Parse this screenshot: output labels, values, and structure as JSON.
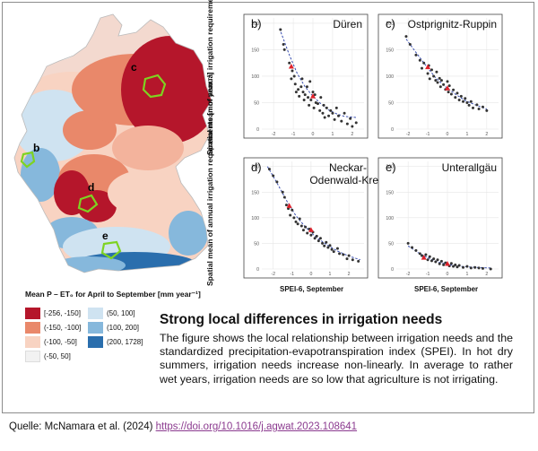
{
  "map": {
    "region_labels": [
      "b",
      "c",
      "d",
      "e"
    ]
  },
  "legend": {
    "title": "Mean P – ET₀ for April to September [mm year⁻¹]",
    "items": [
      {
        "label": "[-256, -150]",
        "color": "#b5162b"
      },
      {
        "label": "(-150, -100]",
        "color": "#e9886a"
      },
      {
        "label": "(-100, -50]",
        "color": "#f8d3c2"
      },
      {
        "label": "(-50, 50]",
        "color": "#f2f2f2"
      },
      {
        "label": "(50, 100]",
        "color": "#cfe3f1"
      },
      {
        "label": "(100, 200]",
        "color": "#86b8dc"
      },
      {
        "label": "(200, 1728]",
        "color": "#2a6ead"
      }
    ]
  },
  "shared_axis": {
    "ylabel": "Spatial mean of annual irrigation requirements [mm year⁻¹]",
    "xlabel": "SPEI-6, September"
  },
  "chart_data": [
    {
      "type": "scatter",
      "panel_letter": "b)",
      "title": "Düren",
      "xlabel": "",
      "ylabel": "",
      "xlim": [
        -2.6,
        2.6
      ],
      "ylim": [
        0,
        210
      ],
      "xticks": [
        -2,
        -1,
        0,
        1,
        2
      ],
      "yticks": [
        0,
        50,
        100,
        150,
        200
      ],
      "grid": true,
      "points": [
        [
          -1.65,
          188
        ],
        [
          -1.5,
          160
        ],
        [
          -1.45,
          150
        ],
        [
          -1.2,
          125
        ],
        [
          -1.1,
          95
        ],
        [
          -1.05,
          110
        ],
        [
          -0.95,
          100
        ],
        [
          -0.9,
          85
        ],
        [
          -0.85,
          70
        ],
        [
          -0.75,
          75
        ],
        [
          -0.7,
          62
        ],
        [
          -0.6,
          80
        ],
        [
          -0.55,
          95
        ],
        [
          -0.5,
          70
        ],
        [
          -0.45,
          55
        ],
        [
          -0.4,
          65
        ],
        [
          -0.3,
          80
        ],
        [
          -0.25,
          60
        ],
        [
          -0.2,
          45
        ],
        [
          -0.15,
          90
        ],
        [
          -0.1,
          55
        ],
        [
          0.0,
          70
        ],
        [
          0.05,
          40
        ],
        [
          0.1,
          65
        ],
        [
          0.15,
          50
        ],
        [
          0.25,
          48
        ],
        [
          0.35,
          35
        ],
        [
          0.4,
          60
        ],
        [
          0.5,
          30
        ],
        [
          0.55,
          45
        ],
        [
          0.6,
          22
        ],
        [
          0.7,
          40
        ],
        [
          0.8,
          25
        ],
        [
          0.9,
          35
        ],
        [
          1.0,
          30
        ],
        [
          1.1,
          18
        ],
        [
          1.2,
          40
        ],
        [
          1.3,
          25
        ],
        [
          1.45,
          15
        ],
        [
          1.6,
          30
        ],
        [
          1.75,
          10
        ],
        [
          1.9,
          20
        ],
        [
          2.0,
          5
        ],
        [
          2.2,
          12
        ]
      ],
      "means": [
        [
          -1.1,
          118
        ],
        [
          0.0,
          62
        ]
      ],
      "fit": [
        [
          -1.7,
          190
        ],
        [
          -1.2,
          140
        ],
        [
          -0.8,
          105
        ],
        [
          -0.4,
          80
        ],
        [
          0.0,
          62
        ],
        [
          0.4,
          48
        ],
        [
          0.8,
          36
        ],
        [
          1.2,
          29
        ],
        [
          1.6,
          24
        ],
        [
          2.2,
          22
        ]
      ]
    },
    {
      "type": "scatter",
      "panel_letter": "c)",
      "title": "Ostprignitz-Ruppin",
      "xlabel": "",
      "ylabel": "",
      "xlim": [
        -2.6,
        2.6
      ],
      "ylim": [
        0,
        210
      ],
      "xticks": [
        -2,
        -1,
        0,
        1,
        2
      ],
      "yticks": [
        0,
        50,
        100,
        150,
        200
      ],
      "grid": true,
      "points": [
        [
          -2.1,
          175
        ],
        [
          -1.9,
          160
        ],
        [
          -1.6,
          140
        ],
        [
          -1.4,
          130
        ],
        [
          -1.3,
          115
        ],
        [
          -1.2,
          125
        ],
        [
          -1.0,
          105
        ],
        [
          -0.95,
          120
        ],
        [
          -0.9,
          95
        ],
        [
          -0.8,
          112
        ],
        [
          -0.7,
          100
        ],
        [
          -0.6,
          92
        ],
        [
          -0.55,
          108
        ],
        [
          -0.5,
          88
        ],
        [
          -0.4,
          96
        ],
        [
          -0.35,
          80
        ],
        [
          -0.3,
          92
        ],
        [
          -0.2,
          84
        ],
        [
          -0.1,
          75
        ],
        [
          0.0,
          90
        ],
        [
          0.05,
          70
        ],
        [
          0.1,
          82
        ],
        [
          0.2,
          66
        ],
        [
          0.3,
          74
        ],
        [
          0.4,
          60
        ],
        [
          0.5,
          68
        ],
        [
          0.6,
          55
        ],
        [
          0.7,
          62
        ],
        [
          0.8,
          52
        ],
        [
          0.9,
          58
        ],
        [
          1.0,
          50
        ],
        [
          1.1,
          45
        ],
        [
          1.2,
          52
        ],
        [
          1.3,
          40
        ],
        [
          1.5,
          46
        ],
        [
          1.6,
          38
        ],
        [
          1.8,
          42
        ],
        [
          2.0,
          35
        ]
      ],
      "means": [
        [
          -1.0,
          117
        ],
        [
          0.0,
          77
        ]
      ],
      "fit": [
        [
          -2.1,
          170
        ],
        [
          -1.6,
          145
        ],
        [
          -1.1,
          120
        ],
        [
          -0.6,
          97
        ],
        [
          -0.1,
          80
        ],
        [
          0.4,
          66
        ],
        [
          0.9,
          54
        ],
        [
          1.4,
          46
        ],
        [
          2.0,
          38
        ]
      ]
    },
    {
      "type": "scatter",
      "panel_letter": "d)",
      "title": "Neckar-\nOdenwald-Kreis",
      "xlabel": "SPEI-6, September",
      "ylabel": "",
      "xlim": [
        -2.6,
        2.8
      ],
      "ylim": [
        0,
        210
      ],
      "xticks": [
        -2,
        -1,
        0,
        1,
        2
      ],
      "yticks": [
        0,
        50,
        100,
        150,
        200
      ],
      "grid": true,
      "points": [
        [
          -2.2,
          195
        ],
        [
          -2.0,
          182
        ],
        [
          -1.8,
          170
        ],
        [
          -1.5,
          150
        ],
        [
          -1.4,
          140
        ],
        [
          -1.3,
          125
        ],
        [
          -1.2,
          118
        ],
        [
          -1.1,
          105
        ],
        [
          -1.0,
          115
        ],
        [
          -0.9,
          100
        ],
        [
          -0.8,
          92
        ],
        [
          -0.7,
          88
        ],
        [
          -0.6,
          98
        ],
        [
          -0.5,
          84
        ],
        [
          -0.4,
          76
        ],
        [
          -0.3,
          82
        ],
        [
          -0.2,
          70
        ],
        [
          -0.1,
          78
        ],
        [
          0.0,
          66
        ],
        [
          0.1,
          72
        ],
        [
          0.2,
          60
        ],
        [
          0.3,
          64
        ],
        [
          0.4,
          55
        ],
        [
          0.5,
          60
        ],
        [
          0.6,
          50
        ],
        [
          0.7,
          45
        ],
        [
          0.8,
          52
        ],
        [
          0.9,
          42
        ],
        [
          1.0,
          46
        ],
        [
          1.1,
          38
        ],
        [
          1.2,
          34
        ],
        [
          1.4,
          40
        ],
        [
          1.5,
          30
        ],
        [
          1.7,
          28
        ],
        [
          1.9,
          20
        ],
        [
          2.0,
          26
        ],
        [
          2.2,
          18
        ],
        [
          2.5,
          15
        ]
      ],
      "means": [
        [
          -1.15,
          123
        ],
        [
          0.0,
          76
        ]
      ],
      "fit": [
        [
          -2.3,
          200
        ],
        [
          -1.8,
          168
        ],
        [
          -1.3,
          134
        ],
        [
          -0.8,
          104
        ],
        [
          -0.3,
          82
        ],
        [
          0.2,
          64
        ],
        [
          0.8,
          48
        ],
        [
          1.4,
          35
        ],
        [
          2.0,
          25
        ],
        [
          2.6,
          18
        ]
      ]
    },
    {
      "type": "scatter",
      "panel_letter": "e)",
      "title": "Unterallgäu",
      "xlabel": "SPEI-6, September",
      "ylabel": "",
      "xlim": [
        -2.6,
        2.6
      ],
      "ylim": [
        0,
        210
      ],
      "xticks": [
        -2,
        -1,
        0,
        1,
        2
      ],
      "yticks": [
        0,
        50,
        100,
        150,
        200
      ],
      "grid": true,
      "points": [
        [
          -2.0,
          50
        ],
        [
          -1.8,
          42
        ],
        [
          -1.6,
          36
        ],
        [
          -1.4,
          30
        ],
        [
          -1.3,
          26
        ],
        [
          -1.2,
          22
        ],
        [
          -1.1,
          28
        ],
        [
          -1.0,
          18
        ],
        [
          -0.9,
          24
        ],
        [
          -0.8,
          16
        ],
        [
          -0.7,
          20
        ],
        [
          -0.6,
          14
        ],
        [
          -0.5,
          18
        ],
        [
          -0.4,
          10
        ],
        [
          -0.3,
          15
        ],
        [
          -0.2,
          8
        ],
        [
          -0.1,
          12
        ],
        [
          0.0,
          9
        ],
        [
          0.1,
          6
        ],
        [
          0.2,
          11
        ],
        [
          0.3,
          5
        ],
        [
          0.4,
          8
        ],
        [
          0.5,
          4
        ],
        [
          0.6,
          7
        ],
        [
          0.8,
          3
        ],
        [
          1.0,
          5
        ],
        [
          1.2,
          2
        ],
        [
          1.4,
          3
        ],
        [
          1.6,
          2
        ],
        [
          1.8,
          1
        ],
        [
          2.2,
          0
        ]
      ],
      "means": [
        [
          -1.2,
          22
        ],
        [
          0.0,
          10
        ]
      ],
      "fit": [
        [
          -2.0,
          45
        ],
        [
          -1.5,
          32
        ],
        [
          -1.0,
          22
        ],
        [
          -0.5,
          14
        ],
        [
          0.0,
          9
        ],
        [
          0.5,
          6
        ],
        [
          1.0,
          4
        ],
        [
          1.6,
          3
        ],
        [
          2.2,
          2
        ]
      ]
    }
  ],
  "text": {
    "headline": "Strong local differences in irrigation needs",
    "description": "The figure shows the local relationship between irrigation needs and the standardized precipitation-evapotranspiration index (SPEI). In hot dry summers, irrigation needs increase non-linearly. In average to rather wet years, irrigation needs are so low that agriculture is not irrigating."
  },
  "source": {
    "prefix": "Quelle: McNamara et al. (2024) ",
    "link": "https://doi.org/10.1016/j.agwat.2023.108641"
  }
}
